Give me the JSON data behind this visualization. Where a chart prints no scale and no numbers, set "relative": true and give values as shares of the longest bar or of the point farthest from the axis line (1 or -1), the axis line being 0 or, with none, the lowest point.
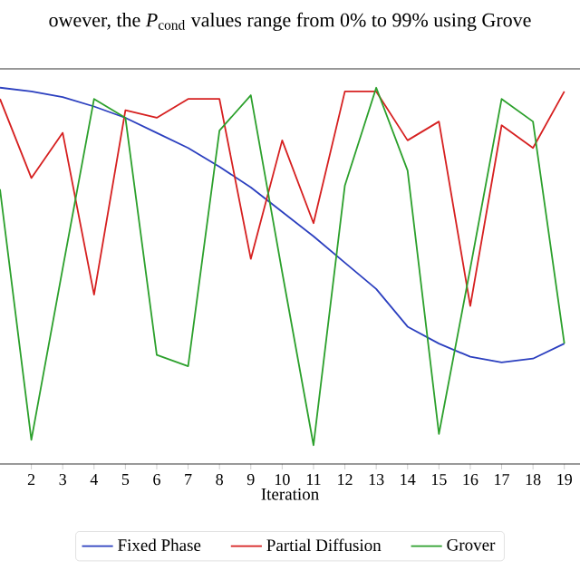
{
  "chart_data": {
    "type": "line",
    "title": "owever, the *P*$_{cond}$ values range from 0% to 99% using Grove",
    "xlabel": "Iteration",
    "relative": true,
    "x": [
      1,
      2,
      3,
      4,
      5,
      6,
      7,
      8,
      9,
      10,
      11,
      12,
      13,
      14,
      15,
      16,
      17,
      18,
      19
    ],
    "xlim": [
      1,
      19.5
    ],
    "xticks": [
      2,
      3,
      4,
      5,
      6,
      7,
      8,
      9,
      10,
      11,
      12,
      13,
      14,
      15,
      16,
      17,
      18,
      19
    ],
    "series": [
      {
        "name": "Fixed Phase",
        "color": "#2b3fbf",
        "values": [
          1.0,
          0.99,
          0.975,
          0.95,
          0.92,
          0.88,
          0.84,
          0.79,
          0.735,
          0.67,
          0.605,
          0.535,
          0.465,
          0.365,
          0.32,
          0.285,
          0.27,
          0.28,
          0.32
        ]
      },
      {
        "name": "Partial Diffusion",
        "color": "#d62020",
        "values": [
          0.97,
          0.76,
          0.88,
          0.45,
          0.94,
          0.92,
          0.97,
          0.97,
          0.545,
          0.86,
          0.64,
          0.99,
          0.99,
          0.86,
          0.91,
          0.42,
          0.9,
          0.84,
          0.99
        ]
      },
      {
        "name": "Grover",
        "color": "#2ca02c",
        "values": [
          0.73,
          0.064,
          0.52,
          0.97,
          0.92,
          0.29,
          0.26,
          0.886,
          0.98,
          0.51,
          0.05,
          0.74,
          1.0,
          0.78,
          0.08,
          0.52,
          0.97,
          0.91,
          0.32
        ]
      }
    ],
    "legend": "bottom",
    "marker": "none",
    "line_style": "solid",
    "grid": false
  }
}
